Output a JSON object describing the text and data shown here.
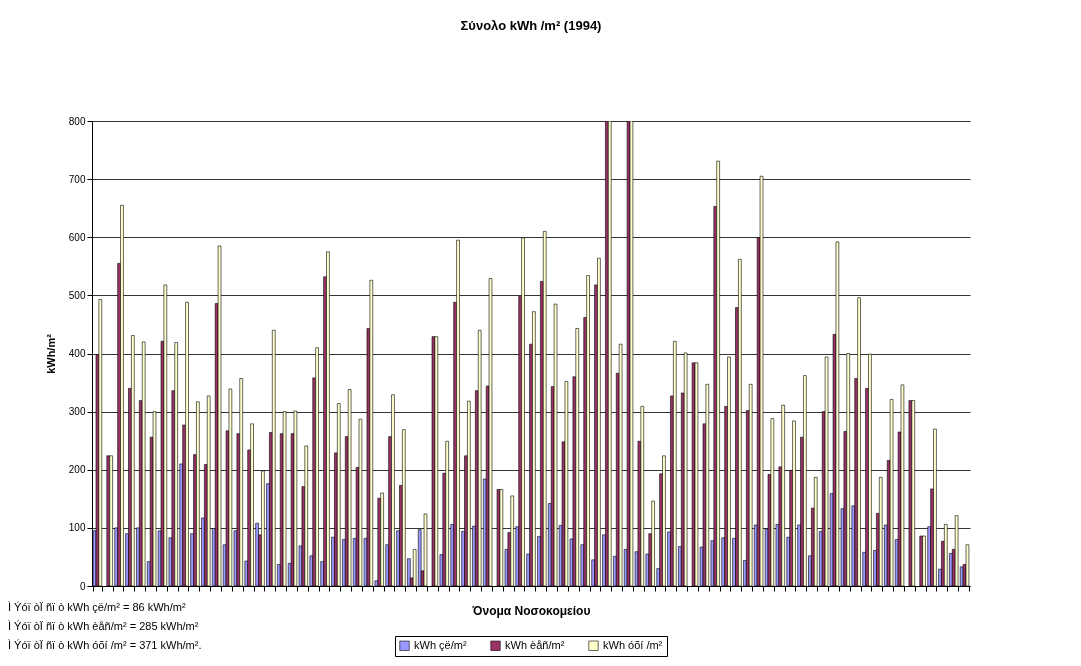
{
  "chart_data": {
    "type": "bar",
    "title": "Σύνολο kWh /m² (1994)",
    "xlabel": "Όνομα Νοσοκομείου",
    "ylabel": "kWh/m²",
    "categories": [
      null,
      null,
      null,
      null,
      null,
      null,
      null,
      null,
      null,
      null,
      null,
      null,
      null,
      null,
      null,
      null,
      null,
      null,
      null,
      null,
      null,
      null,
      null,
      null,
      null,
      null,
      null,
      null,
      null,
      null,
      null,
      null,
      null,
      null,
      null,
      null,
      null,
      null,
      null,
      null,
      null,
      null,
      null,
      null,
      null,
      null,
      null,
      null,
      null,
      null,
      null,
      null,
      null,
      null,
      null,
      null,
      null,
      null,
      null,
      null,
      null,
      null,
      null,
      null,
      null,
      null,
      null,
      null,
      null,
      null,
      null,
      null,
      null,
      null,
      null,
      null,
      null,
      null,
      null,
      null,
      null
    ],
    "series": [
      {
        "name": "kWh çë/m²",
        "color": "#9999ff",
        "values": [
          95,
          null,
          100,
          90,
          100,
          42,
          95,
          83,
          210,
          90,
          117,
          99,
          71,
          95,
          43,
          108,
          176,
          37,
          39,
          69,
          52,
          42,
          84,
          80,
          82,
          82,
          9,
          71,
          95,
          47,
          97,
          null,
          54,
          106,
          94,
          103,
          184,
          null,
          63,
          102,
          55,
          85,
          142,
          104,
          81,
          71,
          45,
          88,
          51,
          63,
          59,
          55,
          30,
          93,
          68,
          null,
          67,
          78,
          83,
          82,
          44,
          105,
          98,
          106,
          84,
          105,
          52,
          94,
          159,
          133,
          138,
          58,
          61,
          105,
          80,
          null,
          null,
          102,
          29,
          56,
          33
        ]
      },
      {
        "name": "kWh èåñ/m²",
        "color": "#993366",
        "values": [
          398,
          224,
          555,
          340,
          319,
          256,
          421,
          336,
          277,
          226,
          209,
          486,
          267,
          262,
          234,
          88,
          264,
          262,
          262,
          171,
          358,
          532,
          229,
          257,
          204,
          443,
          151,
          257,
          173,
          14,
          26,
          429,
          194,
          488,
          224,
          336,
          344,
          166,
          92,
          498,
          416,
          524,
          343,
          248,
          360,
          462,
          518,
          800,
          366,
          800,
          249,
          90,
          193,
          327,
          332,
          384,
          279,
          653,
          309,
          479,
          302,
          599,
          192,
          205,
          199,
          256,
          134,
          300,
          433,
          266,
          357,
          340,
          125,
          216,
          265,
          319,
          86,
          167,
          77,
          63,
          37
        ]
      },
      {
        "name": "kWh óõí /m²",
        "color": "#ffffcc",
        "values": [
          493,
          224,
          655,
          431,
          420,
          300,
          518,
          419,
          488,
          317,
          327,
          585,
          339,
          357,
          279,
          198,
          440,
          300,
          301,
          241,
          410,
          575,
          314,
          338,
          287,
          526,
          160,
          329,
          269,
          63,
          124,
          429,
          249,
          595,
          318,
          440,
          529,
          166,
          155,
          599,
          472,
          610,
          485,
          352,
          443,
          534,
          564,
          800,
          416,
          800,
          309,
          146,
          224,
          421,
          401,
          384,
          347,
          731,
          394,
          562,
          347,
          705,
          288,
          311,
          284,
          362,
          187,
          394,
          592,
          400,
          496,
          399,
          187,
          321,
          346,
          319,
          86,
          270,
          106,
          121,
          71
        ]
      }
    ],
    "ylim": [
      0,
      800
    ],
    "yticks": [
      0,
      100,
      200,
      300,
      400,
      500,
      600,
      700,
      800
    ],
    "grid": "y",
    "legend": "bottom",
    "annotations": [
      "Ì Ýóï òÏ ñï ò kWh çë/m² = 86 kWh/m²",
      "Ì Ýóï òÏ ñï ò kWh èåñ/m² = 285 kWh/m²",
      "Ì Ýóï òÏ ñï ò kWh óõí /m² = 371 kWh/m²."
    ]
  }
}
